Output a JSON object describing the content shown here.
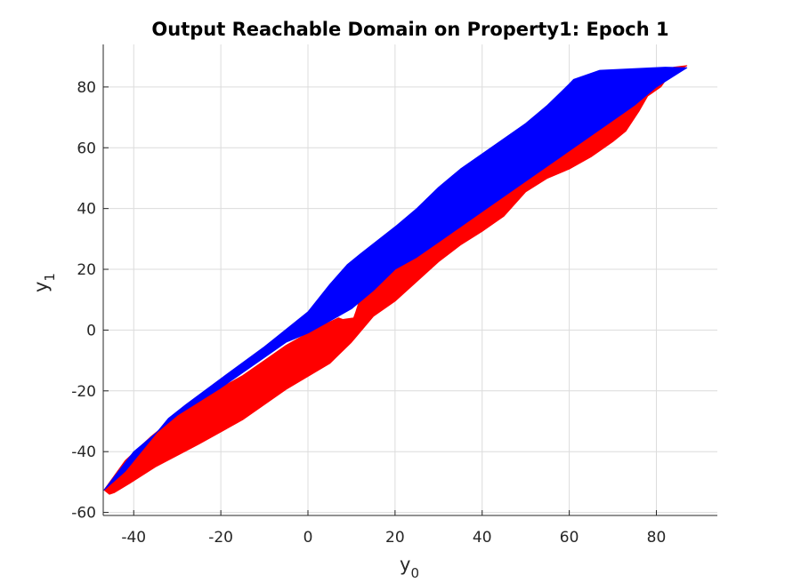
{
  "chart_data": {
    "type": "area",
    "title": "Output Reachable Domain on Property1: Epoch 1",
    "xlabel": {
      "base": "y",
      "subscript": "0"
    },
    "ylabel": {
      "base": "y",
      "subscript": "1"
    },
    "xlim": [
      -47,
      94
    ],
    "ylim": [
      -61,
      94
    ],
    "xticks": [
      -40,
      -20,
      0,
      20,
      40,
      60,
      80
    ],
    "yticks": [
      -60,
      -40,
      -20,
      0,
      20,
      40,
      60,
      80
    ],
    "xtick_labels": [
      "-40",
      "-20",
      "0",
      "20",
      "40",
      "60",
      "80"
    ],
    "ytick_labels": [
      "-60",
      "-40",
      "-20",
      "0",
      "20",
      "40",
      "60",
      "80"
    ],
    "grid": true,
    "colors": {
      "red_region": "#ff0000",
      "blue_region": "#0000ff"
    },
    "series": [
      {
        "color": "#ff0000",
        "points": [
          [
            -46.8,
            -52.6
          ],
          [
            -45.6,
            -54.0
          ],
          [
            -44.5,
            -53.5
          ],
          [
            -41,
            -50.5
          ],
          [
            -35,
            -45
          ],
          [
            -25,
            -37.5
          ],
          [
            -15,
            -29.5
          ],
          [
            -5,
            -19.5
          ],
          [
            5,
            -11
          ],
          [
            10,
            -4
          ],
          [
            15,
            4.5
          ],
          [
            20,
            9.5
          ],
          [
            25,
            16
          ],
          [
            30,
            22.5
          ],
          [
            35,
            28
          ],
          [
            40,
            32.5
          ],
          [
            45,
            37.5
          ],
          [
            50,
            45.5
          ],
          [
            55,
            50
          ],
          [
            60,
            53
          ],
          [
            65,
            57
          ],
          [
            70,
            62
          ],
          [
            73,
            65.5
          ],
          [
            76,
            72
          ],
          [
            78,
            77
          ],
          [
            81,
            80
          ],
          [
            83,
            84
          ],
          [
            87,
            87
          ],
          [
            84,
            86.5
          ],
          [
            80,
            83
          ],
          [
            75,
            79
          ],
          [
            70,
            74
          ],
          [
            65,
            69
          ],
          [
            60,
            64
          ],
          [
            55,
            59
          ],
          [
            50,
            54
          ],
          [
            45,
            49
          ],
          [
            40,
            44
          ],
          [
            35,
            39
          ],
          [
            30,
            34
          ],
          [
            25,
            29
          ],
          [
            20,
            24
          ],
          [
            15,
            19
          ],
          [
            13,
            15
          ],
          [
            11,
            6
          ],
          [
            10.5,
            4
          ],
          [
            8,
            3.5
          ],
          [
            7,
            4
          ],
          [
            4,
            2
          ],
          [
            0,
            -1
          ],
          [
            -5,
            -5
          ],
          [
            -10,
            -10
          ],
          [
            -15,
            -15
          ],
          [
            -20,
            -19
          ],
          [
            -30,
            -28
          ],
          [
            -36,
            -35
          ],
          [
            -42,
            -43
          ]
        ]
      },
      {
        "color": "#0000ff",
        "points": [
          [
            -46.8,
            -52.6
          ],
          [
            -42,
            -46.5
          ],
          [
            -36,
            -36
          ],
          [
            -32,
            -29
          ],
          [
            -28,
            -24.5
          ],
          [
            -20,
            -16
          ],
          [
            -10,
            -5.5
          ],
          [
            0,
            6
          ],
          [
            5,
            15
          ],
          [
            9,
            21.5
          ],
          [
            12,
            25
          ],
          [
            20,
            34
          ],
          [
            25,
            40
          ],
          [
            30,
            47
          ],
          [
            35,
            53
          ],
          [
            40,
            58
          ],
          [
            45,
            63
          ],
          [
            50,
            68
          ],
          [
            55,
            74
          ],
          [
            60,
            81
          ],
          [
            61,
            82.5
          ],
          [
            67,
            85.5
          ],
          [
            82,
            86.5
          ],
          [
            87,
            86.3
          ],
          [
            80,
            80
          ],
          [
            75,
            74
          ],
          [
            70,
            69
          ],
          [
            65,
            64
          ],
          [
            60,
            59
          ],
          [
            55,
            54
          ],
          [
            50,
            49
          ],
          [
            45,
            44
          ],
          [
            40,
            39
          ],
          [
            35,
            34
          ],
          [
            30,
            29
          ],
          [
            25,
            24
          ],
          [
            20,
            20
          ],
          [
            15,
            13
          ],
          [
            10,
            7
          ],
          [
            5,
            3
          ],
          [
            0,
            -1
          ],
          [
            -5,
            -4
          ],
          [
            -10,
            -9
          ],
          [
            -15,
            -14
          ],
          [
            -20,
            -19
          ],
          [
            -30,
            -28
          ],
          [
            -40,
            -40
          ]
        ]
      }
    ]
  }
}
